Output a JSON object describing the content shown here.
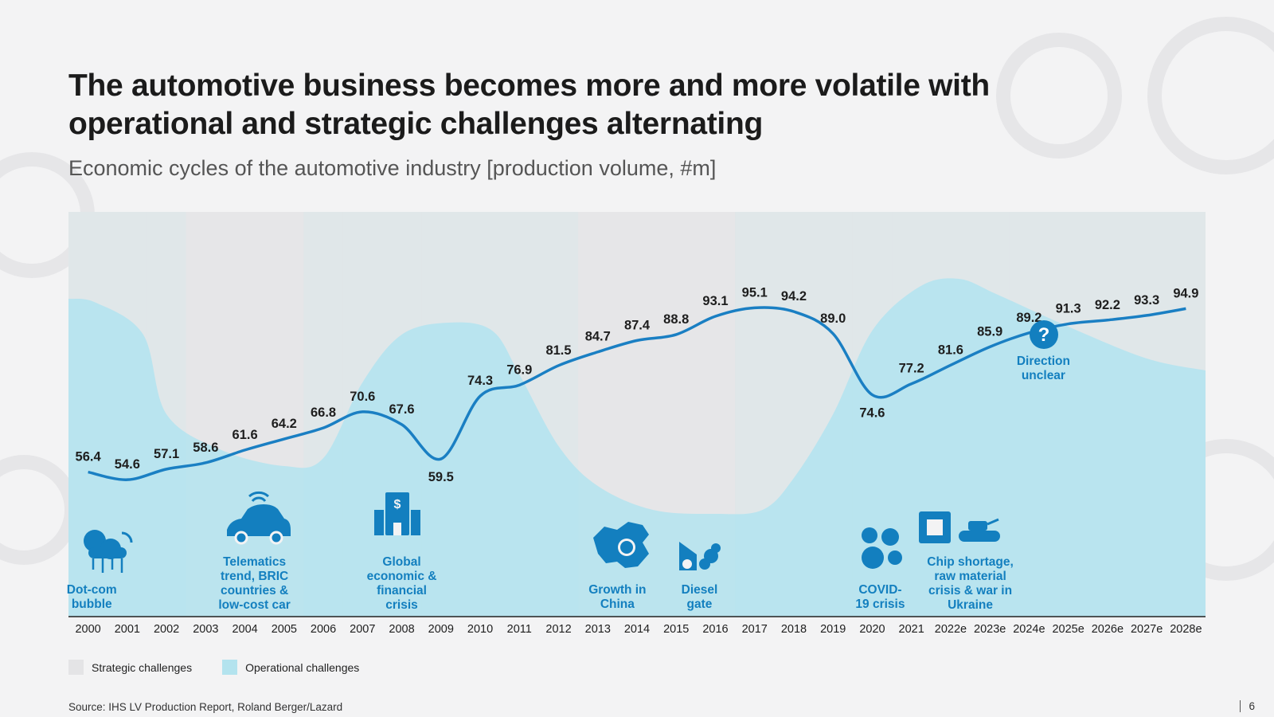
{
  "title": "The automotive business becomes more and more volatile with operational and strategic challenges alternating",
  "subtitle": "Economic cycles of the automotive industry [production volume, #m]",
  "colors": {
    "line": "#1a7fc3",
    "strategic": "#e4e4e6",
    "operational": "#b3e3ee",
    "operational_light": "#d6eef4",
    "accent_text": "#137fbf"
  },
  "chart_data": {
    "type": "line",
    "title": "Economic cycles of the automotive industry [production volume, #m]",
    "xlabel": "",
    "ylabel": "",
    "x": [
      "2000",
      "2001",
      "2002",
      "2003",
      "2004",
      "2005",
      "2006",
      "2007",
      "2008",
      "2009",
      "2010",
      "2011",
      "2012",
      "2013",
      "2014",
      "2015",
      "2016",
      "2017",
      "2018",
      "2019",
      "2020",
      "2021",
      "2022e",
      "2023e",
      "2024e",
      "2025e",
      "2026e",
      "2027e",
      "2028e"
    ],
    "series": [
      {
        "values": [
          56.4,
          54.6,
          57.1,
          58.6,
          61.6,
          64.2,
          66.8,
          70.6,
          67.6,
          59.5,
          74.3,
          76.9,
          81.5,
          84.7,
          87.4,
          88.8,
          93.1,
          95.1,
          94.2,
          89.0,
          74.6,
          77.2,
          81.6,
          85.9,
          89.2,
          91.3,
          92.2,
          93.3,
          94.9
        ]
      }
    ],
    "data_labels": [
      "56.4",
      "54.6",
      "57.1",
      "58.6",
      "61.6",
      "64.2",
      "66.8",
      "70.6",
      "67.6",
      "59.5",
      "74.3",
      "76.9",
      "81.5",
      "84.7",
      "87.4",
      "88.8",
      "93.1",
      "95.1",
      "94.2",
      "89.0",
      "74.6",
      "77.2",
      "81.6",
      "85.9",
      "89.2",
      "91.3",
      "92.2",
      "93.3",
      "94.9"
    ],
    "phases": [
      {
        "from": "2000",
        "to": "2001",
        "kind": "operational",
        "event": "Dot-com bubble",
        "icon": "cloud-network-icon"
      },
      {
        "from": "2002",
        "to": "2002",
        "kind": "operational"
      },
      {
        "from": "2003",
        "to": "2005",
        "kind": "strategic",
        "event": "Telematics trend, BRIC countries & low-cost car",
        "icon": "connected-car-icon"
      },
      {
        "from": "2006",
        "to": "2006",
        "kind": "operational"
      },
      {
        "from": "2007",
        "to": "2008",
        "kind": "operational",
        "event": "Global economic & financial crisis",
        "icon": "bank-building-icon"
      },
      {
        "from": "2009",
        "to": "2012",
        "kind": "operational"
      },
      {
        "from": "2013",
        "to": "2014",
        "kind": "strategic",
        "event": "Growth in China",
        "icon": "china-map-icon"
      },
      {
        "from": "2015",
        "to": "2016",
        "kind": "strategic",
        "event": "Diesel gate",
        "icon": "exhaust-icon"
      },
      {
        "from": "2017",
        "to": "2019",
        "kind": "operational"
      },
      {
        "from": "2020",
        "to": "2020",
        "kind": "operational",
        "event": "COVID-19 crisis",
        "icon": "virus-icon"
      },
      {
        "from": "2021",
        "to": "2023e",
        "kind": "operational",
        "event": "Chip shortage, raw material crisis & war in Ukraine",
        "icon": "chip-tank-icon"
      },
      {
        "from": "2024e",
        "to": "2028e",
        "kind": "operational",
        "event": "Direction unclear",
        "icon": "question-icon"
      }
    ],
    "legend": [
      "Strategic challenges",
      "Operational challenges"
    ],
    "ylim": [
      40,
      110
    ],
    "grid": false,
    "legend_position": "bottom-left"
  },
  "events": {
    "dotcom": [
      "Dot-com",
      "bubble"
    ],
    "telematics": [
      "Telematics",
      "trend, BRIC",
      "countries &",
      "low-cost car"
    ],
    "global": [
      "Global",
      "economic &",
      "financial",
      "crisis"
    ],
    "china": [
      "Growth in",
      "China"
    ],
    "diesel": [
      "Diesel",
      "gate"
    ],
    "covid": [
      "COVID-",
      "19 crisis"
    ],
    "chip": [
      "Chip shortage,",
      "raw material",
      "crisis & war in",
      "Ukraine"
    ],
    "unclear": [
      "Direction",
      "unclear"
    ]
  },
  "legend": {
    "strategic": "Strategic challenges",
    "operational": "Operational challenges"
  },
  "source": "Source: IHS LV Production Report, Roland Berger/Lazard",
  "page_number": "6"
}
